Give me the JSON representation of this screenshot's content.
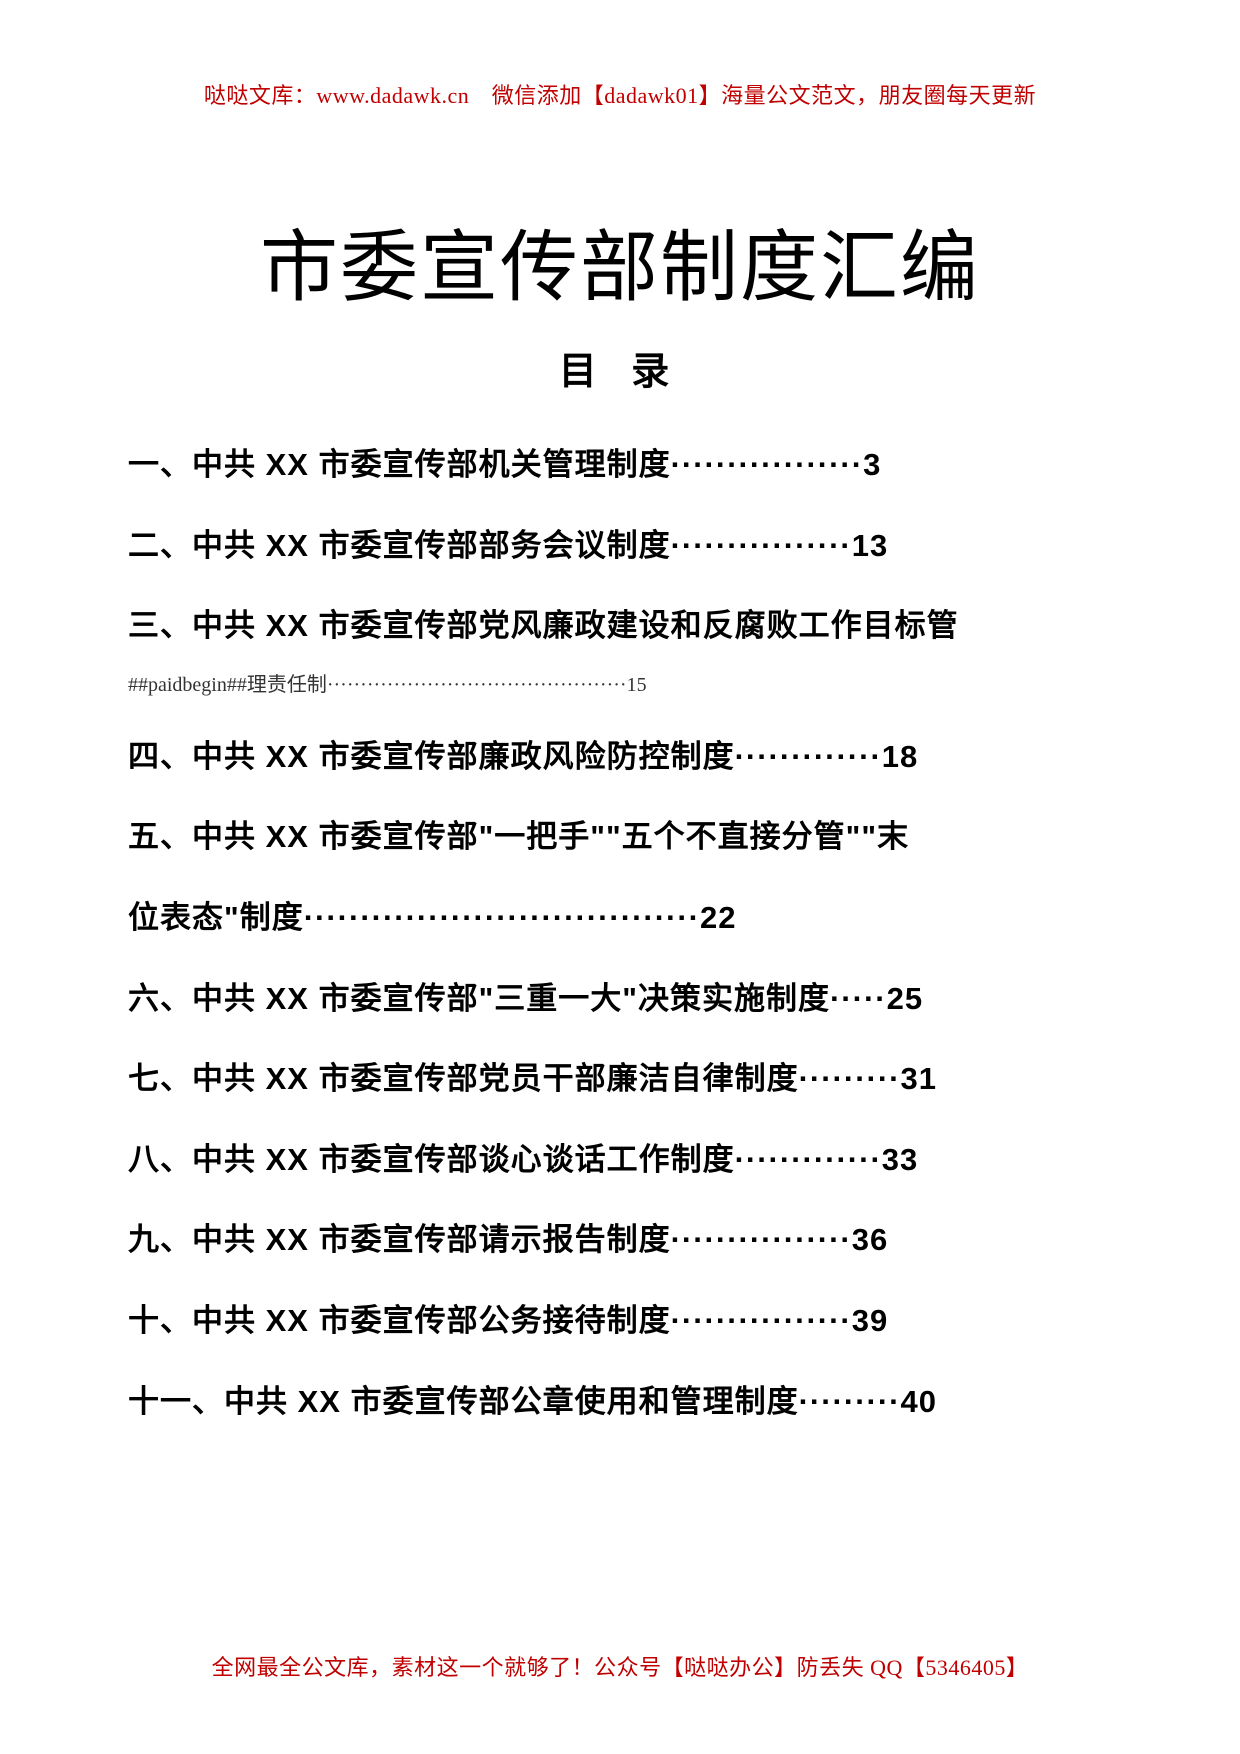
{
  "header": "哒哒文库：www.dadawk.cn　微信添加【dadawk01】海量公文范文，朋友圈每天更新",
  "main_title": "市委宣传部制度汇编",
  "toc_title": "目 录",
  "toc": {
    "items": [
      "一、中共 XX 市委宣传部机关管理制度·················3",
      "二、中共 XX 市委宣传部部务会议制度················13",
      "三、中共 XX 市委宣传部党风廉政建设和反腐败工作目标管"
    ],
    "sub_line": "##paidbegin##理责任制·············································15",
    "items2": [
      "四、中共 XX 市委宣传部廉政风险防控制度·············18",
      "五、中共 XX 市委宣传部\"一把手\"\"五个不直接分管\"\"末",
      "位表态\"制度···································22",
      "六、中共 XX 市委宣传部\"三重一大\"决策实施制度·····25",
      "七、中共 XX 市委宣传部党员干部廉洁自律制度·········31",
      "八、中共 XX 市委宣传部谈心谈话工作制度·············33",
      "九、中共 XX 市委宣传部请示报告制度················36",
      "十、中共 XX 市委宣传部公务接待制度················39",
      "十一、中共 XX 市委宣传部公章使用和管理制度·········40"
    ]
  },
  "footer": "全网最全公文库，素材这一个就够了！公众号【哒哒办公】防丢失 QQ【5346405】",
  "colors": {
    "accent": "#c00000",
    "text": "#000000",
    "sub_text": "#333333",
    "background": "#ffffff"
  },
  "typography": {
    "header_fontsize": 22,
    "main_title_fontsize": 78,
    "toc_title_fontsize": 38,
    "toc_item_fontsize": 31,
    "toc_sub_fontsize": 20,
    "footer_fontsize": 22
  }
}
